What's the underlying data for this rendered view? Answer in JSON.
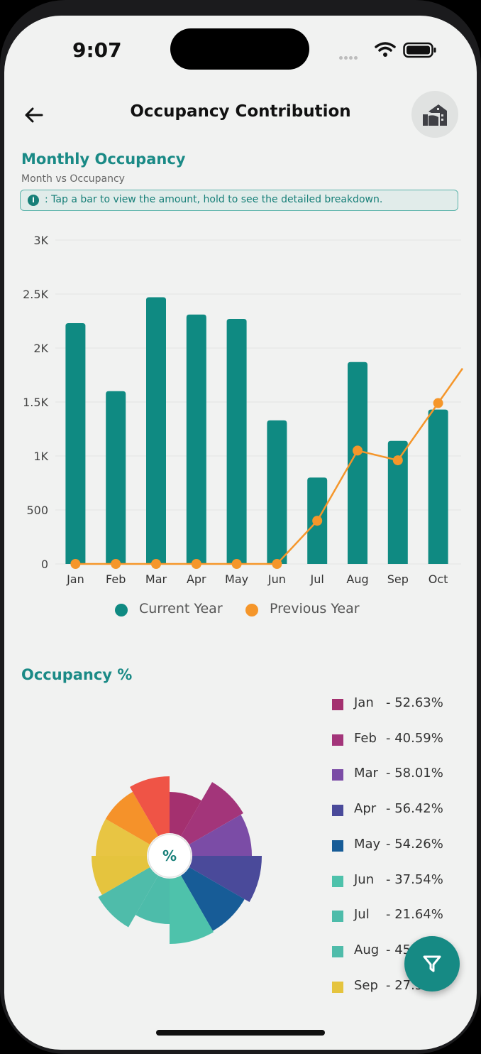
{
  "status_bar": {
    "time": "9:07"
  },
  "header": {
    "title": "Occupancy Contribution",
    "back_icon": "arrow-left-icon",
    "logo_icon": "property-logo-icon"
  },
  "monthly": {
    "title": "Monthly Occupancy",
    "subtitle": "Month vs Occupancy",
    "info": ": Tap a bar to view the amount, hold to see the detailed breakdown."
  },
  "chart_data": {
    "type": "bar",
    "categories": [
      "Jan",
      "Feb",
      "Mar",
      "Apr",
      "May",
      "Jun",
      "Jul",
      "Aug",
      "Sep",
      "Oct"
    ],
    "y_ticks": [
      "0",
      "500",
      "1K",
      "1.5K",
      "2K",
      "2.5K",
      "3K"
    ],
    "ylim": [
      0,
      3000
    ],
    "grid": true,
    "legend_position": "bottom",
    "series": [
      {
        "name": "Current Year",
        "type": "bar",
        "color": "#0f8a82",
        "values": [
          2230,
          1600,
          2470,
          2310,
          2270,
          1330,
          800,
          1870,
          1140,
          1430
        ]
      },
      {
        "name": "Previous Year",
        "type": "line",
        "color": "#f5962a",
        "values": [
          0,
          0,
          0,
          0,
          0,
          0,
          400,
          1050,
          960,
          1490
        ]
      }
    ]
  },
  "occupancy_pct": {
    "title": "Occupancy %",
    "center_label": "%",
    "items": [
      {
        "month": "Jan",
        "value": "- 52.63%",
        "color": "#a4306f"
      },
      {
        "month": "Feb",
        "value": "- 40.59%",
        "color": "#a3357a"
      },
      {
        "month": "Mar",
        "value": "- 58.01%",
        "color": "#7b4ca6"
      },
      {
        "month": "Apr",
        "value": "- 56.42%",
        "color": "#4a4a9a"
      },
      {
        "month": "May",
        "value": "- 54.26%",
        "color": "#175c97"
      },
      {
        "month": "Jun",
        "value": "- 37.54%",
        "color": "#4ec2ab"
      },
      {
        "month": "Jul",
        "value": "- 21.64%",
        "color": "#4dbcaa"
      },
      {
        "month": "Aug",
        "value": "- 45",
        "color": "#4fbcaa"
      },
      {
        "month": "Sep",
        "value": "- 27.5",
        "color": "#e5c43e"
      }
    ]
  },
  "fab": {
    "icon": "filter-icon"
  }
}
